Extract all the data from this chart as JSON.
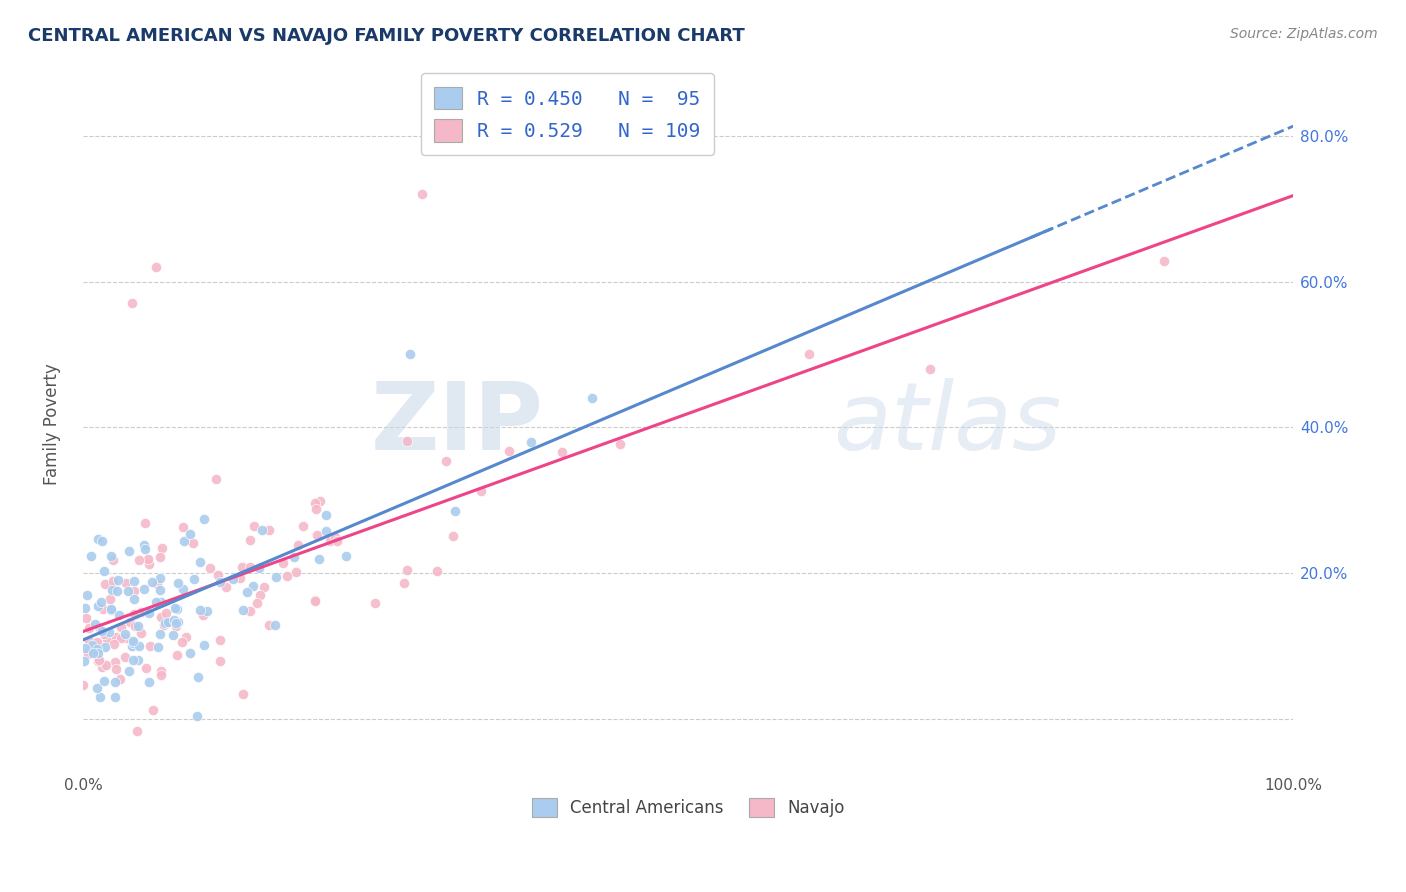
{
  "title": "CENTRAL AMERICAN VS NAVAJO FAMILY POVERTY CORRELATION CHART",
  "source": "Source: ZipAtlas.com",
  "ylabel": "Family Poverty",
  "xlim": [
    0.0,
    1.0
  ],
  "ylim": [
    -0.07,
    0.88
  ],
  "xticks": [
    0.0,
    0.2,
    0.4,
    0.6,
    0.8,
    1.0
  ],
  "xtick_labels": [
    "0.0%",
    "",
    "",
    "",
    "",
    "100.0%"
  ],
  "ytick_positions": [
    0.0,
    0.2,
    0.4,
    0.6,
    0.8
  ],
  "right_ytick_labels": [
    "20.0%",
    "40.0%",
    "60.0%",
    "80.0%"
  ],
  "right_ytick_positions": [
    0.2,
    0.4,
    0.6,
    0.8
  ],
  "blue_color": "#aaccee",
  "pink_color": "#f4b8c8",
  "blue_line_color": "#5588cc",
  "pink_line_color": "#ee4488",
  "r_blue": 0.45,
  "n_blue": 95,
  "r_pink": 0.529,
  "n_pink": 109,
  "legend_label_blue": "Central Americans",
  "legend_label_pink": "Navajo",
  "watermark_zip": "ZIP",
  "watermark_atlas": "atlas",
  "title_color": "#1a3a6a",
  "source_color": "#888888",
  "grid_color": "#cccccc",
  "background_color": "#ffffff",
  "seed": 12345
}
